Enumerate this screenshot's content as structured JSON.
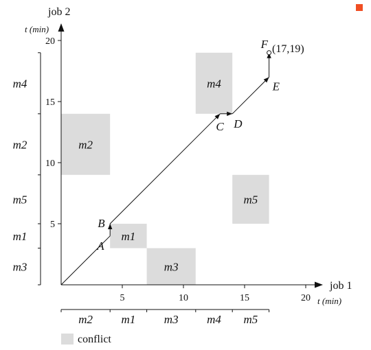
{
  "axes": {
    "x": {
      "title": "job 1",
      "unit": "t (min)",
      "ticks": [
        5,
        10,
        15,
        20
      ],
      "range": [
        0,
        20
      ]
    },
    "y": {
      "title": "job 2",
      "unit": "t (min)",
      "ticks": [
        5,
        10,
        15,
        20
      ],
      "range": [
        0,
        20
      ]
    }
  },
  "job1_sequence": [
    {
      "label": "m2",
      "start": 0,
      "end": 4
    },
    {
      "label": "m1",
      "start": 4,
      "end": 7
    },
    {
      "label": "m3",
      "start": 7,
      "end": 11
    },
    {
      "label": "m4",
      "start": 11,
      "end": 14
    },
    {
      "label": "m5",
      "start": 14,
      "end": 17
    }
  ],
  "job2_sequence": [
    {
      "label": "m3",
      "start": 0,
      "end": 3
    },
    {
      "label": "m1",
      "start": 3,
      "end": 5
    },
    {
      "label": "m5",
      "start": 5,
      "end": 9
    },
    {
      "label": "m2",
      "start": 9,
      "end": 14
    },
    {
      "label": "m4",
      "start": 14,
      "end": 19
    }
  ],
  "conflicts": [
    {
      "label": "m2",
      "x": [
        0,
        4
      ],
      "y": [
        9,
        14
      ]
    },
    {
      "label": "m1",
      "x": [
        4,
        7
      ],
      "y": [
        3,
        5
      ]
    },
    {
      "label": "m3",
      "x": [
        7,
        11
      ],
      "y": [
        0,
        3
      ]
    },
    {
      "label": "m4",
      "x": [
        11,
        14
      ],
      "y": [
        14,
        19
      ]
    },
    {
      "label": "m5",
      "x": [
        14,
        17
      ],
      "y": [
        5,
        9
      ]
    }
  ],
  "path": [
    {
      "x": 0,
      "y": 0,
      "label": ""
    },
    {
      "x": 4,
      "y": 4,
      "label": "A"
    },
    {
      "x": 4,
      "y": 5,
      "label": "B"
    },
    {
      "x": 13,
      "y": 14,
      "label": "C"
    },
    {
      "x": 14,
      "y": 14,
      "label": "D"
    },
    {
      "x": 17,
      "y": 17,
      "label": "E"
    },
    {
      "x": 17,
      "y": 19,
      "label": "F"
    }
  ],
  "final_point_text": "(17,19)",
  "legend": {
    "label": "conflict"
  },
  "colors": {
    "conflict": "#dcdcdc",
    "line": "#111111",
    "corner_marker": "#f04e23"
  }
}
